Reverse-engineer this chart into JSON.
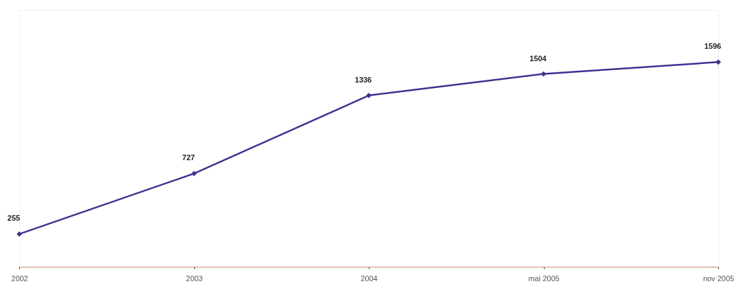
{
  "chart_data": {
    "type": "line",
    "categories": [
      "2002",
      "2003",
      "2004",
      "mai 2005",
      "nov 2005"
    ],
    "series": [
      {
        "color": "#3d3290",
        "values": [
          255,
          727,
          1336,
          1504,
          1596
        ]
      }
    ],
    "ylim": [
      0,
      2000
    ],
    "tick_labels": "x",
    "data_labels": true,
    "marker": "diamond",
    "line_style": "solid",
    "grid": false
  }
}
